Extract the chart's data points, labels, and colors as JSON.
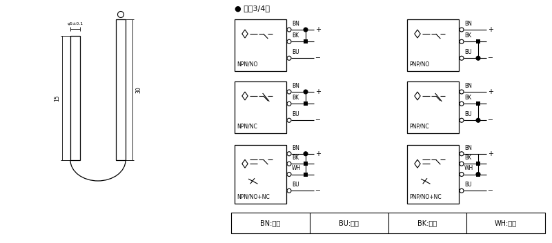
{
  "bg_color": "#ffffff",
  "title_text": "● 直涁3/4线",
  "legend_items": [
    "BN:棕色",
    "BU:兰色",
    "BK:黑色",
    "WH:白色"
  ],
  "figsize": [
    8.0,
    3.52
  ],
  "dpi": 100
}
